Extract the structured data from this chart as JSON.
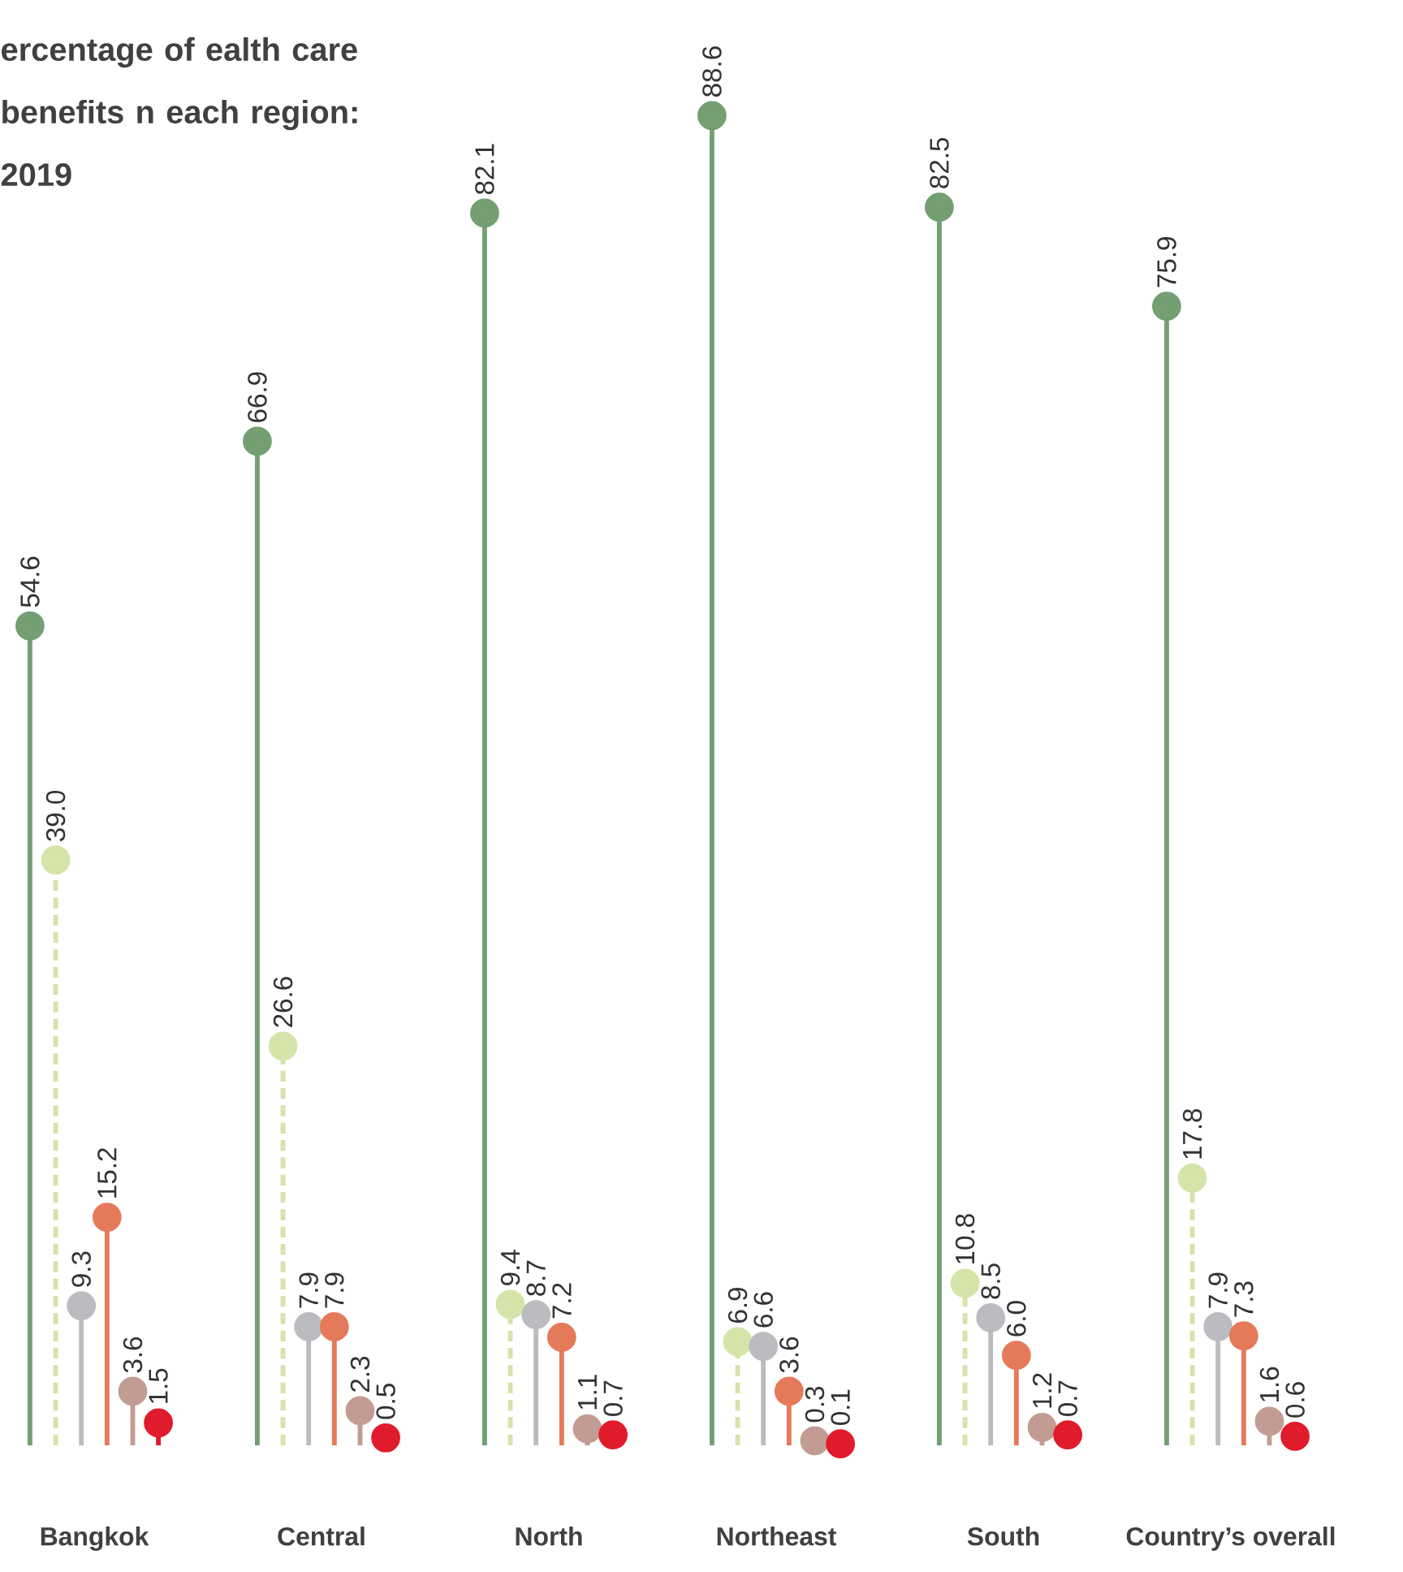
{
  "chart_data": {
    "type": "lollipop",
    "title": "ercentage of ealth care benefits n each region: 2019",
    "categories": [
      "Bangkok",
      "Central",
      "North",
      "Northeast",
      "South",
      "Country’s overall"
    ],
    "marker": "circle",
    "tick_labels": "x",
    "series": [
      {
        "color": "#739f72",
        "line_style": "solid",
        "values": [
          54.6,
          66.9,
          82.1,
          88.6,
          82.5,
          75.9
        ],
        "value_labels": [
          "54.6",
          "66.9",
          "82.1",
          "88.6",
          "82.5",
          "75.9"
        ]
      },
      {
        "color": "#d5e4a8",
        "line_style": "dashed",
        "values": [
          39.0,
          26.6,
          9.4,
          6.9,
          10.8,
          17.8
        ],
        "value_labels": [
          "39.0",
          "26.6",
          "9.4",
          "6.9",
          "10.8",
          "17.8"
        ]
      },
      {
        "color": "#bcbcc0",
        "line_style": "solid",
        "values": [
          9.3,
          7.9,
          8.7,
          6.6,
          8.5,
          7.9
        ],
        "value_labels": [
          "9.3",
          "7.9",
          "8.7",
          "6.6",
          "8.5",
          "7.9"
        ]
      },
      {
        "color": "#e57a5a",
        "line_style": "solid",
        "values": [
          15.2,
          7.9,
          7.2,
          3.6,
          6.0,
          7.3
        ],
        "value_labels": [
          "15.2",
          "7.9",
          "7.2",
          "3.6",
          "6.0",
          "7.3"
        ]
      },
      {
        "color": "#c29c92",
        "line_style": "solid",
        "values": [
          3.6,
          2.3,
          1.1,
          0.3,
          1.2,
          1.6
        ],
        "value_labels": [
          "3.6",
          "2.3",
          "1.1",
          "0.3",
          "1.2",
          "1.6"
        ]
      },
      {
        "color": "#e01b2b",
        "line_style": "solid",
        "values": [
          1.5,
          0.5,
          0.7,
          0.1,
          0.7,
          0.6
        ],
        "value_labels": [
          "1.5",
          "0.5",
          "0.7",
          "0.1",
          "0.7",
          "0.6"
        ]
      }
    ]
  }
}
